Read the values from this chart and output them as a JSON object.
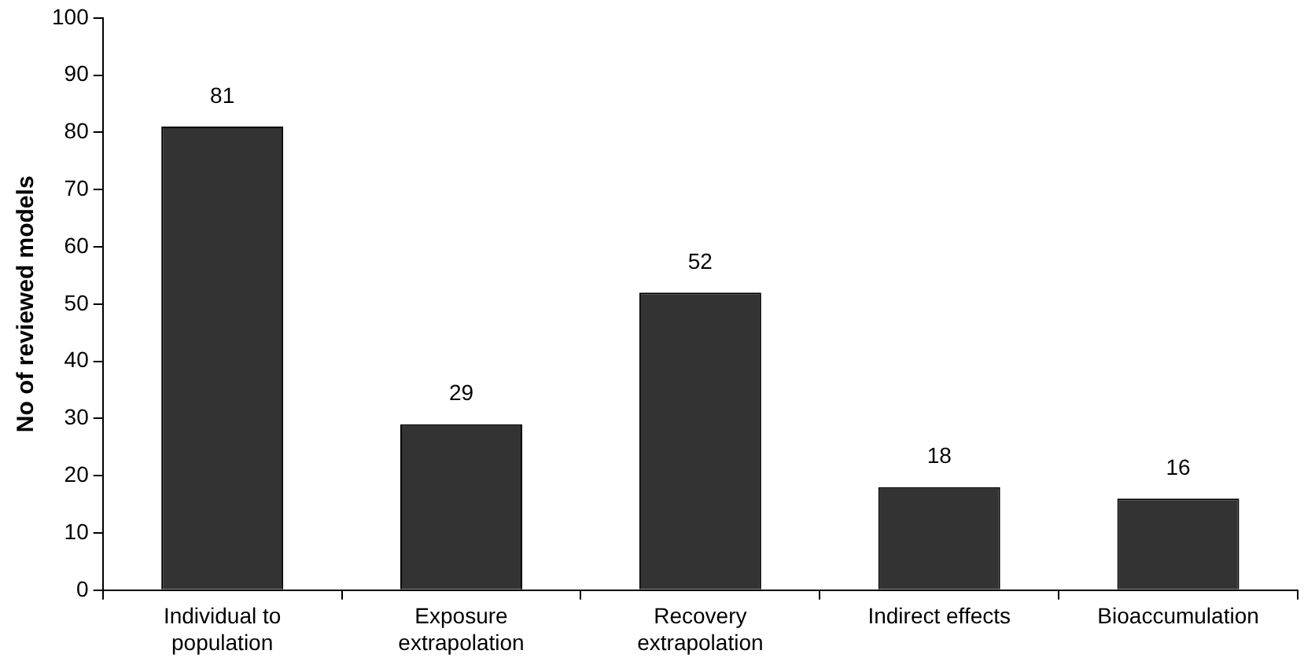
{
  "chart_data": {
    "type": "bar",
    "ylabel": "No of reviewed models",
    "categories": [
      "Individual to population",
      "Exposure extrapolation",
      "Recovery extrapolation",
      "Indirect effects",
      "Bioaccumulation"
    ],
    "values": [
      81,
      29,
      52,
      18,
      16
    ],
    "color": "#333333",
    "ylim": [
      0,
      100
    ],
    "yticks": [
      0,
      10,
      20,
      30,
      40,
      50,
      60,
      70,
      80,
      90,
      100
    ],
    "grid": false,
    "data_labels": true,
    "legend": false
  }
}
